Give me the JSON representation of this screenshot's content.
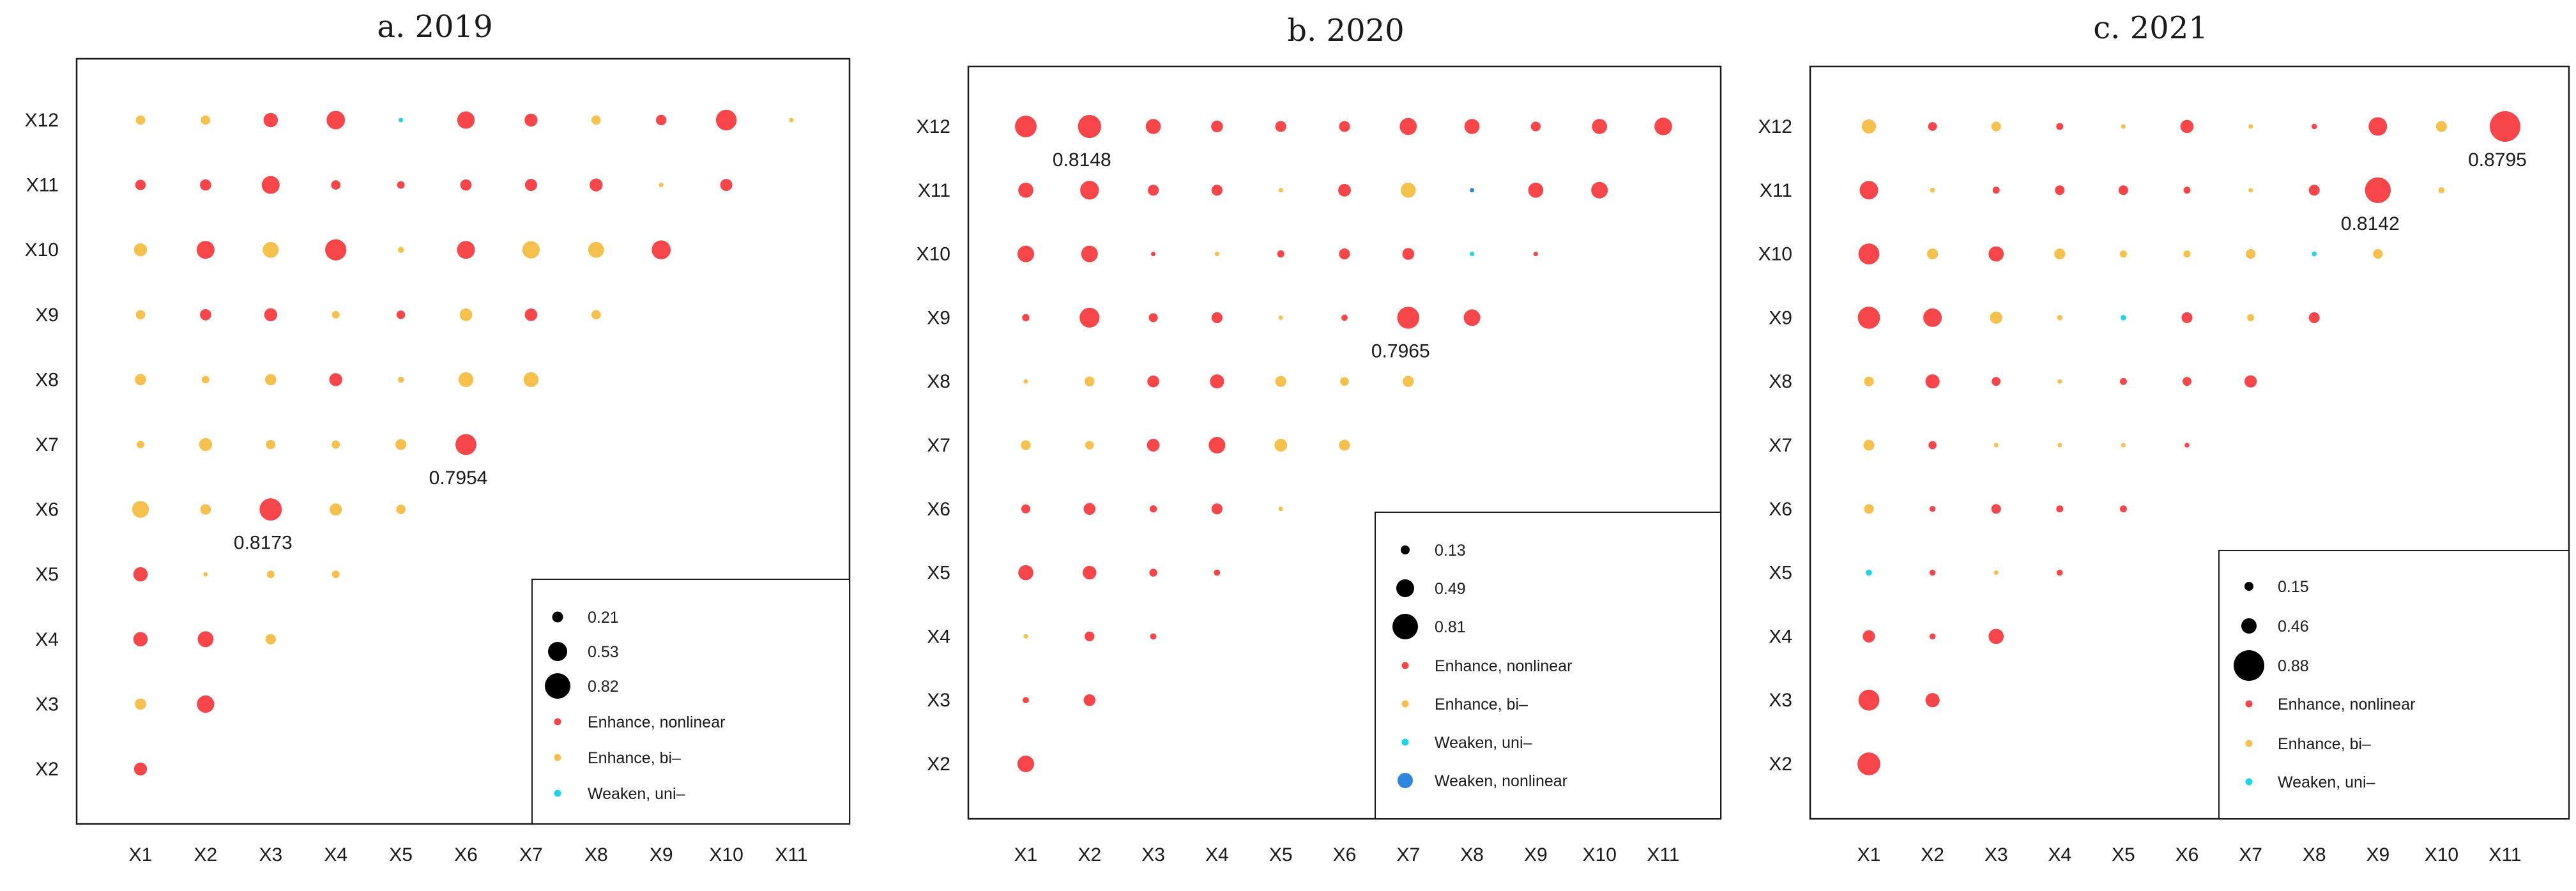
{
  "colors": {
    "Enhance, nonlinear": "#f7464a",
    "Enhance, bi-": "#f6c04c",
    "Weaken, uni-": "#1fd4e6",
    "Weaken, nonlinear": "#2f86dc",
    "axis": "#1a1a1a"
  },
  "icons": {
    "size_legend_dot": "black-circle-icon",
    "category_legend_dot": "filled-circle-icon"
  },
  "chart_data": [
    {
      "type": "scatter",
      "title": "a. 2019",
      "x_labels": [
        "X1",
        "X2",
        "X3",
        "X4",
        "X5",
        "X6",
        "X7",
        "X8",
        "X9",
        "X10",
        "X11"
      ],
      "y_labels": [
        "X2",
        "X3",
        "X4",
        "X5",
        "X6",
        "X7",
        "X8",
        "X9",
        "X10",
        "X11",
        "X12"
      ],
      "xlabel": "",
      "ylabel": "",
      "legend_size_labels": [
        "0.21",
        "0.53",
        "0.82"
      ],
      "legend_size_values": [
        0.21,
        0.53,
        0.82
      ],
      "legend_categories": [
        "Enhance, nonlinear",
        "Enhance, bi–",
        "Weaken, uni–"
      ],
      "legend_category_keys": [
        "Enhance, nonlinear",
        "Enhance, bi-",
        "Weaken, uni-"
      ],
      "legend_position": "bottom-right",
      "annotations": [
        {
          "x": "X3",
          "y": "X6",
          "text": "0.8173"
        },
        {
          "x": "X6",
          "y": "X7",
          "text": "0.7954"
        }
      ],
      "rows": [
        {
          "y": "X12",
          "values": [
            0.55,
            0.55,
            0.67,
            0.75,
            0.22,
            0.73,
            0.64,
            0.55,
            0.58,
            0.79,
            0.38
          ],
          "types": [
            "b",
            "b",
            "n",
            "n",
            "w",
            "n",
            "n",
            "b",
            "n",
            "n",
            "b"
          ]
        },
        {
          "y": "X11",
          "values": [
            0.58,
            0.6,
            0.74,
            0.55,
            0.5,
            0.6,
            0.62,
            0.64,
            0.35,
            0.62
          ],
          "types": [
            "n",
            "n",
            "n",
            "n",
            "n",
            "n",
            "n",
            "n",
            "b",
            "n"
          ]
        },
        {
          "y": "X10",
          "values": [
            0.64,
            0.74,
            0.7,
            0.8,
            0.45,
            0.74,
            0.73,
            0.7,
            0.76
          ],
          "types": [
            "b",
            "n",
            "b",
            "n",
            "b",
            "n",
            "b",
            "b",
            "n"
          ]
        },
        {
          "y": "X9",
          "values": [
            0.55,
            0.6,
            0.64,
            0.5,
            0.53,
            0.63,
            0.63,
            0.55
          ],
          "types": [
            "b",
            "n",
            "n",
            "b",
            "n",
            "b",
            "n",
            "b"
          ]
        },
        {
          "y": "X8",
          "values": [
            0.6,
            0.5,
            0.6,
            0.64,
            0.45,
            0.68,
            0.68
          ],
          "types": [
            "b",
            "b",
            "b",
            "n",
            "b",
            "b",
            "b"
          ]
        },
        {
          "y": "X7",
          "values": [
            0.5,
            0.64,
            0.55,
            0.52,
            0.59,
            0.7954
          ],
          "types": [
            "b",
            "b",
            "b",
            "b",
            "b",
            "n"
          ]
        },
        {
          "y": "X6",
          "values": [
            0.72,
            0.58,
            0.8173,
            0.62,
            0.55
          ],
          "types": [
            "b",
            "b",
            "n",
            "b",
            "b"
          ]
        },
        {
          "y": "X5",
          "values": [
            0.67,
            0.35,
            0.5,
            0.5
          ],
          "types": [
            "n",
            "b",
            "b",
            "b"
          ]
        },
        {
          "y": "X4",
          "values": [
            0.67,
            0.7,
            0.58
          ],
          "types": [
            "n",
            "n",
            "b"
          ]
        },
        {
          "y": "X3",
          "values": [
            0.6,
            0.73
          ],
          "types": [
            "b",
            "n"
          ]
        },
        {
          "y": "X2",
          "values": [
            0.64
          ],
          "types": [
            "n"
          ]
        }
      ]
    },
    {
      "type": "scatter",
      "title": "b. 2020",
      "x_labels": [
        "X1",
        "X2",
        "X3",
        "X4",
        "X5",
        "X6",
        "X7",
        "X8",
        "X9",
        "X10",
        "X11"
      ],
      "y_labels": [
        "X2",
        "X3",
        "X4",
        "X5",
        "X6",
        "X7",
        "X8",
        "X9",
        "X10",
        "X11",
        "X12"
      ],
      "xlabel": "",
      "ylabel": "",
      "legend_size_labels": [
        "0.13",
        "0.49",
        "0.81"
      ],
      "legend_size_values": [
        0.13,
        0.49,
        0.81
      ],
      "legend_categories": [
        "Enhance, nonlinear",
        "Enhance, bi–",
        "Weaken, uni–",
        "Weaken, nonlinear"
      ],
      "legend_category_keys": [
        "Enhance, nonlinear",
        "Enhance, bi-",
        "Weaken, uni-",
        "Weaken, nonlinear"
      ],
      "legend_position": "bottom-right",
      "annotations": [
        {
          "x": "X2",
          "y": "X12",
          "text": "0.8148"
        },
        {
          "x": "X7",
          "y": "X9",
          "text": "0.7965"
        }
      ],
      "rows": [
        {
          "y": "X12",
          "values": [
            0.79,
            0.8148,
            0.67,
            0.6,
            0.58,
            0.58,
            0.71,
            0.67,
            0.55,
            0.67,
            0.72
          ],
          "types": [
            "n",
            "n",
            "n",
            "n",
            "n",
            "n",
            "n",
            "n",
            "n",
            "n",
            "n"
          ]
        },
        {
          "y": "X11",
          "values": [
            0.67,
            0.74,
            0.58,
            0.58,
            0.38,
            0.62,
            0.67,
            0.17,
            0.67,
            0.7
          ],
          "types": [
            "n",
            "n",
            "n",
            "n",
            "b",
            "n",
            "b",
            "wn",
            "n",
            "n"
          ]
        },
        {
          "y": "X10",
          "values": [
            0.7,
            0.7,
            0.38,
            0.3,
            0.48,
            0.58,
            0.6,
            0.35,
            0.33
          ],
          "types": [
            "n",
            "n",
            "n",
            "b",
            "n",
            "n",
            "n",
            "w",
            "n"
          ]
        },
        {
          "y": "X9",
          "values": [
            0.48,
            0.76,
            0.53,
            0.58,
            0.38,
            0.45,
            0.7965,
            0.7
          ],
          "types": [
            "n",
            "n",
            "n",
            "n",
            "b",
            "n",
            "n",
            "n"
          ]
        },
        {
          "y": "X8",
          "values": [
            0.38,
            0.55,
            0.6,
            0.65,
            0.58,
            0.52,
            0.58
          ],
          "types": [
            "b",
            "b",
            "n",
            "n",
            "b",
            "b",
            "b"
          ]
        },
        {
          "y": "X7",
          "values": [
            0.55,
            0.52,
            0.62,
            0.7,
            0.62,
            0.58
          ],
          "types": [
            "b",
            "b",
            "n",
            "n",
            "b",
            "b"
          ]
        },
        {
          "y": "X6",
          "values": [
            0.53,
            0.6,
            0.48,
            0.58,
            0.33
          ],
          "types": [
            "n",
            "n",
            "n",
            "n",
            "b"
          ]
        },
        {
          "y": "X5",
          "values": [
            0.67,
            0.64,
            0.5,
            0.45
          ],
          "types": [
            "n",
            "n",
            "n",
            "n"
          ]
        },
        {
          "y": "X4",
          "values": [
            0.35,
            0.55,
            0.45
          ],
          "types": [
            "b",
            "n",
            "n"
          ]
        },
        {
          "y": "X3",
          "values": [
            0.45,
            0.6
          ],
          "types": [
            "n",
            "n"
          ]
        },
        {
          "y": "X2",
          "values": [
            0.7
          ],
          "types": [
            "n"
          ]
        }
      ]
    },
    {
      "type": "scatter",
      "title": "c. 2021",
      "x_labels": [
        "X1",
        "X2",
        "X3",
        "X4",
        "X5",
        "X6",
        "X7",
        "X8",
        "X9",
        "X10",
        "X11"
      ],
      "y_labels": [
        "X2",
        "X3",
        "X4",
        "X5",
        "X6",
        "X7",
        "X8",
        "X9",
        "X10",
        "X11",
        "X12"
      ],
      "xlabel": "",
      "ylabel": "",
      "legend_size_labels": [
        "0.15",
        "0.46",
        "0.88"
      ],
      "legend_size_values": [
        0.15,
        0.46,
        0.88
      ],
      "legend_categories": [
        "Enhance, nonlinear",
        "Enhance, bi–",
        "Weaken, uni–"
      ],
      "legend_category_keys": [
        "Enhance, nonlinear",
        "Enhance, bi-",
        "Weaken, uni-"
      ],
      "legend_position": "bottom-right",
      "annotations": [
        {
          "x": "X11",
          "y": "X12",
          "text": "0.8795"
        },
        {
          "x": "X9",
          "y": "X11",
          "text": "0.8142"
        }
      ],
      "rows": [
        {
          "y": "X12",
          "values": [
            0.62,
            0.5,
            0.52,
            0.45,
            0.32,
            0.6,
            0.35,
            0.4,
            0.7,
            0.55,
            0.8795
          ],
          "types": [
            "b",
            "n",
            "b",
            "n",
            "b",
            "n",
            "b",
            "n",
            "n",
            "b",
            "n"
          ]
        },
        {
          "y": "X11",
          "values": [
            0.7,
            0.38,
            0.45,
            0.52,
            0.52,
            0.45,
            0.32,
            0.55,
            0.8142,
            0.42
          ],
          "types": [
            "n",
            "b",
            "n",
            "n",
            "n",
            "n",
            "b",
            "n",
            "n",
            "b"
          ]
        },
        {
          "y": "X10",
          "values": [
            0.74,
            0.55,
            0.64,
            0.55,
            0.45,
            0.45,
            0.52,
            0.38,
            0.52
          ],
          "types": [
            "n",
            "b",
            "n",
            "b",
            "b",
            "b",
            "b",
            "w",
            "b"
          ]
        },
        {
          "y": "X9",
          "values": [
            0.76,
            0.7,
            0.58,
            0.4,
            0.4,
            0.55,
            0.45,
            0.55
          ],
          "types": [
            "n",
            "n",
            "b",
            "b",
            "w",
            "n",
            "b",
            "n"
          ]
        },
        {
          "y": "X8",
          "values": [
            0.52,
            0.62,
            0.5,
            0.2,
            0.45,
            0.5,
            0.58
          ],
          "types": [
            "b",
            "n",
            "n",
            "b",
            "n",
            "n",
            "n"
          ]
        },
        {
          "y": "X7",
          "values": [
            0.55,
            0.48,
            0.35,
            0.35,
            0.3,
            0.38
          ],
          "types": [
            "b",
            "n",
            "b",
            "b",
            "b",
            "n"
          ]
        },
        {
          "y": "X6",
          "values": [
            0.52,
            0.42,
            0.52,
            0.45,
            0.45
          ],
          "types": [
            "b",
            "n",
            "n",
            "n",
            "n"
          ]
        },
        {
          "y": "X5",
          "values": [
            0.42,
            0.42,
            0.35,
            0.42
          ],
          "types": [
            "w",
            "n",
            "b",
            "n"
          ]
        },
        {
          "y": "X4",
          "values": [
            0.58,
            0.42,
            0.64
          ],
          "types": [
            "n",
            "n",
            "n"
          ]
        },
        {
          "y": "X3",
          "values": [
            0.74,
            0.62
          ],
          "types": [
            "n",
            "n"
          ]
        },
        {
          "y": "X2",
          "values": [
            0.77
          ],
          "types": [
            "n"
          ]
        }
      ]
    }
  ]
}
